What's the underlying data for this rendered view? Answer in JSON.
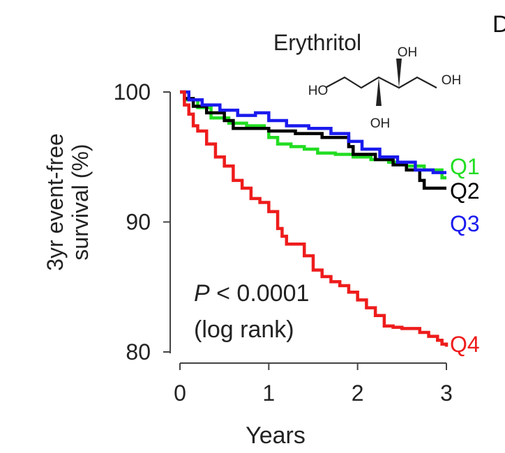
{
  "figure": {
    "panel_letter_fragment": "D"
  },
  "chart_data": {
    "type": "line",
    "step": true,
    "title": "",
    "inset_title": "Erythritol",
    "xlabel": "Years",
    "ylabel_line1": "3yr event-free",
    "ylabel_line2": "survival (%)",
    "xlim": [
      0,
      3
    ],
    "ylim": [
      80,
      100
    ],
    "xticks": [
      0,
      1,
      2,
      3
    ],
    "yticks": [
      80,
      90,
      100
    ],
    "grid": false,
    "legend": "end-of-line labels",
    "annotation": {
      "line1_italic": "P",
      "line1_rest": " < 0.0001",
      "line2": "(log rank)"
    },
    "molecule_labels": {
      "ho_left": "HO",
      "oh_top": "OH",
      "oh_right": "OH",
      "oh_bottom": "OH"
    },
    "series": [
      {
        "name": "Q1",
        "color": "#22dd22",
        "x": [
          0,
          0.05,
          0.2,
          0.35,
          0.55,
          0.75,
          0.95,
          1.0,
          1.1,
          1.25,
          1.4,
          1.55,
          1.75,
          1.95,
          2.15,
          2.35,
          2.55,
          2.75,
          2.95,
          3.0
        ],
        "y": [
          100,
          99.4,
          98.8,
          98.0,
          97.6,
          97.4,
          97.2,
          96.5,
          96.0,
          95.8,
          95.6,
          95.3,
          95.2,
          95.0,
          94.8,
          94.6,
          94.3,
          94.0,
          93.4,
          93.4
        ]
      },
      {
        "name": "Q2",
        "color": "#000000",
        "x": [
          0,
          0.05,
          0.15,
          0.3,
          0.5,
          0.6,
          1.0,
          1.3,
          1.6,
          1.9,
          1.95,
          2.2,
          2.4,
          2.55,
          2.7,
          2.75,
          3.0
        ],
        "y": [
          100,
          99.5,
          98.9,
          98.4,
          97.8,
          97.2,
          97.0,
          96.8,
          96.5,
          95.8,
          95.2,
          94.8,
          94.4,
          94.0,
          93.2,
          92.6,
          92.6
        ]
      },
      {
        "name": "Q3",
        "color": "#1a1aee",
        "x": [
          0,
          0.1,
          0.25,
          0.45,
          0.65,
          0.85,
          1.0,
          1.2,
          1.45,
          1.7,
          1.9,
          2.05,
          2.25,
          2.45,
          2.65,
          2.85,
          3.0
        ],
        "y": [
          100,
          99.4,
          99.0,
          98.6,
          98.2,
          98.4,
          97.8,
          97.4,
          97.2,
          96.8,
          96.2,
          95.6,
          95.0,
          94.6,
          94.0,
          93.8,
          93.8
        ]
      },
      {
        "name": "Q4",
        "color": "#ee1c1c",
        "x": [
          0,
          0.05,
          0.1,
          0.15,
          0.2,
          0.3,
          0.4,
          0.5,
          0.6,
          0.7,
          0.8,
          0.9,
          1.0,
          1.1,
          1.15,
          1.2,
          1.3,
          1.4,
          1.5,
          1.6,
          1.7,
          1.8,
          1.9,
          2.0,
          2.1,
          2.2,
          2.3,
          2.4,
          2.5,
          2.6,
          2.7,
          2.8,
          2.9,
          2.95,
          3.0
        ],
        "y": [
          100,
          99.0,
          98.3,
          97.4,
          97.0,
          96.0,
          95.0,
          94.3,
          93.2,
          92.6,
          91.8,
          91.5,
          90.8,
          89.5,
          88.9,
          88.3,
          88.3,
          87.4,
          86.3,
          85.8,
          85.4,
          85.1,
          84.6,
          84.0,
          83.4,
          82.8,
          82.0,
          81.9,
          81.8,
          81.8,
          81.5,
          81.2,
          80.9,
          80.6,
          80.4
        ]
      }
    ]
  }
}
